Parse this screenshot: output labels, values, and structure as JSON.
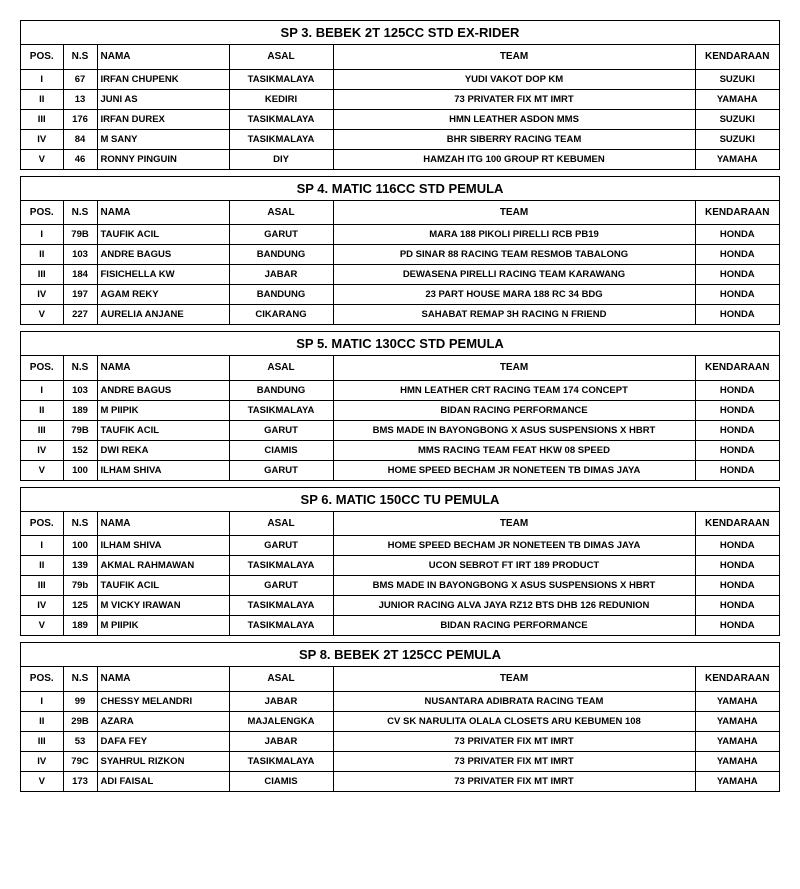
{
  "sections": [
    {
      "title": "SP 3. BEBEK 2T 125CC STD EX-RIDER",
      "rows": [
        {
          "pos": "I",
          "ns": "67",
          "nama": "IRFAN CHUPENK",
          "asal": "TASIKMALAYA",
          "team": "YUDI VAKOT DOP KM",
          "kend": "SUZUKI"
        },
        {
          "pos": "II",
          "ns": "13",
          "nama": "JUNI AS",
          "asal": "KEDIRI",
          "team": "73 PRIVATER FIX MT IMRT",
          "kend": "YAMAHA"
        },
        {
          "pos": "III",
          "ns": "176",
          "nama": "IRFAN DUREX",
          "asal": "TASIKMALAYA",
          "team": "HMN LEATHER ASDON MMS",
          "kend": "SUZUKI"
        },
        {
          "pos": "IV",
          "ns": "84",
          "nama": "M SANY",
          "asal": "TASIKMALAYA",
          "team": "BHR SIBERRY RACING TEAM",
          "kend": "SUZUKI"
        },
        {
          "pos": "V",
          "ns": "46",
          "nama": "RONNY PINGUIN",
          "asal": "DIY",
          "team": "HAMZAH ITG 100 GROUP RT KEBUMEN",
          "kend": "YAMAHA"
        }
      ]
    },
    {
      "title": "SP 4. MATIC 116CC STD PEMULA",
      "rows": [
        {
          "pos": "I",
          "ns": "79B",
          "nama": "TAUFIK ACIL",
          "asal": "GARUT",
          "team": "MARA 188 PIKOLI PIRELLI RCB PB19",
          "kend": "HONDA"
        },
        {
          "pos": "II",
          "ns": "103",
          "nama": "ANDRE BAGUS",
          "asal": "BANDUNG",
          "team": "PD SINAR 88 RACING TEAM RESMOB TABALONG",
          "kend": "HONDA"
        },
        {
          "pos": "III",
          "ns": "184",
          "nama": "FISICHELLA KW",
          "asal": "JABAR",
          "team": "DEWASENA PIRELLI RACING TEAM KARAWANG",
          "kend": "HONDA"
        },
        {
          "pos": "IV",
          "ns": "197",
          "nama": "AGAM REKY",
          "asal": "BANDUNG",
          "team": "23 PART HOUSE MARA 188 RC 34 BDG",
          "kend": "HONDA"
        },
        {
          "pos": "V",
          "ns": "227",
          "nama": "AURELIA ANJANE",
          "asal": "CIKARANG",
          "team": "SAHABAT REMAP 3H RACING N FRIEND",
          "kend": "HONDA"
        }
      ]
    },
    {
      "title": "SP 5. MATIC 130CC STD PEMULA",
      "rows": [
        {
          "pos": "I",
          "ns": "103",
          "nama": "ANDRE BAGUS",
          "asal": "BANDUNG",
          "team": "HMN LEATHER CRT RACING TEAM 174 CONCEPT",
          "kend": "HONDA"
        },
        {
          "pos": "II",
          "ns": "189",
          "nama": "M PIIPIK",
          "asal": "TASIKMALAYA",
          "team": "BIDAN RACING PERFORMANCE",
          "kend": "HONDA"
        },
        {
          "pos": "III",
          "ns": "79B",
          "nama": "TAUFIK ACIL",
          "asal": "GARUT",
          "team": "BMS MADE IN BAYONGBONG X ASUS SUSPENSIONS X HBRT",
          "kend": "HONDA"
        },
        {
          "pos": "IV",
          "ns": "152",
          "nama": "DWI REKA",
          "asal": "CIAMIS",
          "team": "MMS RACING TEAM FEAT HKW 08 SPEED",
          "kend": "HONDA"
        },
        {
          "pos": "V",
          "ns": "100",
          "nama": "ILHAM SHIVA",
          "asal": "GARUT",
          "team": "HOME SPEED BECHAM JR NONETEEN TB DIMAS JAYA",
          "kend": "HONDA"
        }
      ]
    },
    {
      "title": "SP 6. MATIC 150CC TU PEMULA",
      "rows": [
        {
          "pos": "I",
          "ns": "100",
          "nama": "ILHAM SHIVA",
          "asal": "GARUT",
          "team": "HOME SPEED BECHAM JR NONETEEN TB DIMAS JAYA",
          "kend": "HONDA"
        },
        {
          "pos": "II",
          "ns": "139",
          "nama": "AKMAL RAHMAWAN",
          "asal": "TASIKMALAYA",
          "team": "UCON SEBROT FT IRT 189 PRODUCT",
          "kend": "HONDA"
        },
        {
          "pos": "III",
          "ns": "79b",
          "nama": "TAUFIK ACIL",
          "asal": "GARUT",
          "team": "BMS MADE IN BAYONGBONG X ASUS SUSPENSIONS X HBRT",
          "kend": "HONDA"
        },
        {
          "pos": "IV",
          "ns": "125",
          "nama": "M VICKY IRAWAN",
          "asal": "TASIKMALAYA",
          "team": "JUNIOR RACING ALVA JAYA RZ12 BTS DHB 126 REDUNION",
          "kend": "HONDA"
        },
        {
          "pos": "V",
          "ns": "189",
          "nama": "M PIIPIK",
          "asal": "TASIKMALAYA",
          "team": "BIDAN RACING PERFORMANCE",
          "kend": "HONDA"
        }
      ]
    },
    {
      "title": "SP 8. BEBEK 2T 125CC PEMULA",
      "rows": [
        {
          "pos": "I",
          "ns": "99",
          "nama": "CHESSY MELANDRI",
          "asal": "JABAR",
          "team": "NUSANTARA ADIBRATA RACING TEAM",
          "kend": "YAMAHA"
        },
        {
          "pos": "II",
          "ns": "29B",
          "nama": "AZARA",
          "asal": "MAJALENGKA",
          "team": "CV SK NARULITA OLALA CLOSETS ARU KEBUMEN 108",
          "kend": "YAMAHA"
        },
        {
          "pos": "III",
          "ns": "53",
          "nama": "DAFA FEY",
          "asal": "JABAR",
          "team": "73 PRIVATER FIX MT IMRT",
          "kend": "YAMAHA"
        },
        {
          "pos": "IV",
          "ns": "79C",
          "nama": "SYAHRUL RIZKON",
          "asal": "TASIKMALAYA",
          "team": "73 PRIVATER FIX MT IMRT",
          "kend": "YAMAHA"
        },
        {
          "pos": "V",
          "ns": "173",
          "nama": "ADI FAISAL",
          "asal": "CIAMIS",
          "team": "73 PRIVATER FIX MT IMRT",
          "kend": "YAMAHA"
        }
      ]
    }
  ],
  "headers": {
    "pos": "POS.",
    "ns": "N.S",
    "nama": "NAMA",
    "asal": "ASAL",
    "team": "TEAM",
    "kend": "KENDARAAN"
  }
}
